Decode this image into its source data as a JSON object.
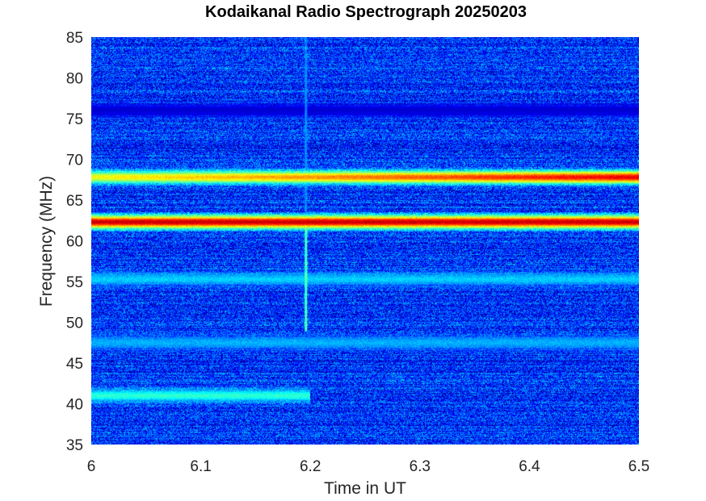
{
  "chart_data": {
    "type": "heatmap",
    "title": "Kodaikanal Radio Spectrograph  20250203",
    "xlabel": "Time in UT",
    "ylabel": "Frequency (MHz)",
    "xlim": [
      6,
      6.5
    ],
    "ylim": [
      35,
      85
    ],
    "x_ticks": [
      "6",
      "6.1",
      "6.2",
      "6.3",
      "6.4",
      "6.5"
    ],
    "y_ticks": [
      "35",
      "40",
      "45",
      "50",
      "55",
      "60",
      "65",
      "70",
      "75",
      "80",
      "85"
    ],
    "colormap": "jet",
    "background_level": 0.17,
    "horizontal_features": [
      {
        "freq": 62.3,
        "t_start": 6.0,
        "t_end": 6.5,
        "level": 0.93,
        "note": "strong persistent band"
      },
      {
        "freq": 67.8,
        "t_start": 6.0,
        "t_end": 6.5,
        "level": 0.62,
        "level_end": 0.9,
        "note": "band strengthening with time"
      },
      {
        "freq": 41.0,
        "t_start": 6.0,
        "t_end": 6.2,
        "level": 0.42
      },
      {
        "freq": 55.3,
        "t_start": 6.0,
        "t_end": 6.5,
        "level": 0.33
      },
      {
        "freq": 47.5,
        "t_start": 6.0,
        "t_end": 6.5,
        "level": 0.3
      },
      {
        "freq": 76.0,
        "t_start": 6.0,
        "t_end": 6.5,
        "level": 0.08,
        "note": "dark band"
      }
    ],
    "vertical_features": [
      {
        "time": 6.196,
        "f_start": 49,
        "f_end": 62,
        "level": 0.5
      },
      {
        "time": 6.196,
        "f_start": 62,
        "f_end": 85,
        "level": 0.28
      }
    ]
  }
}
